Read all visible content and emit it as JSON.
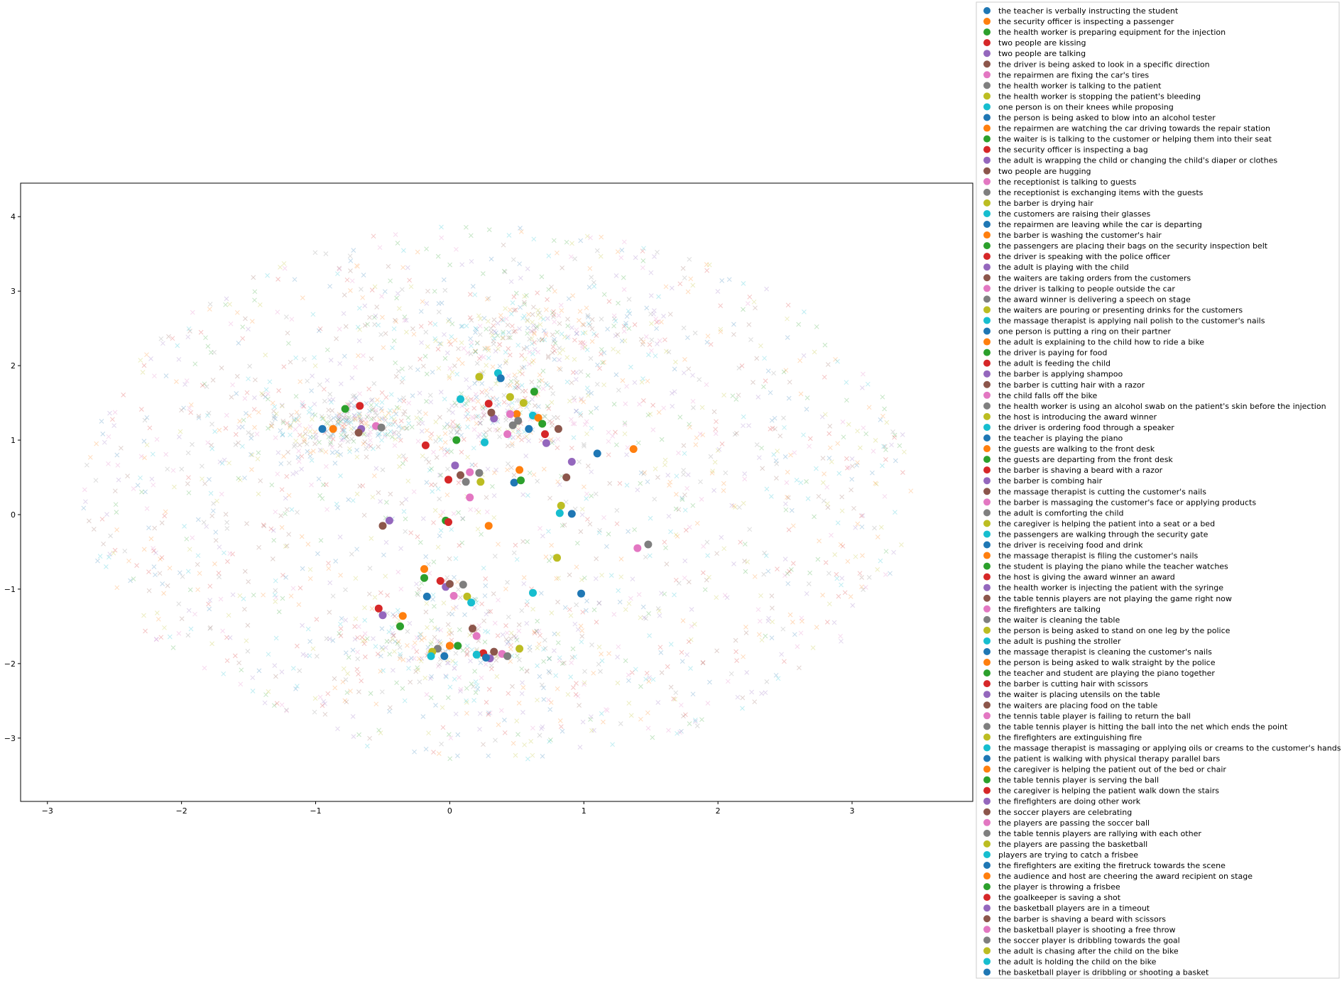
{
  "chart_data": {
    "type": "scatter",
    "title": "",
    "xlabel": "",
    "ylabel": "",
    "xlim": [
      -3.2,
      3.9
    ],
    "ylim": [
      -3.85,
      4.45
    ],
    "xticks": [
      -3,
      -2,
      -1,
      0,
      1,
      2,
      3
    ],
    "yticks": [
      -3,
      -2,
      -1,
      0,
      1,
      2,
      3,
      4
    ],
    "grid": false,
    "legend_position": "outside-right",
    "background_markers": "x",
    "palette": [
      "#1f77b4",
      "#ff7f0e",
      "#2ca02c",
      "#d62728",
      "#9467bd",
      "#8c564b",
      "#e377c2",
      "#7f7f7f",
      "#bcbd22",
      "#17becf"
    ],
    "series": [
      {
        "name": "the teacher is verbally instructing the student",
        "color": "#1f77b4"
      },
      {
        "name": "the security officer is inspecting a passenger",
        "color": "#ff7f0e"
      },
      {
        "name": "the health worker is preparing equipment for the injection",
        "color": "#2ca02c"
      },
      {
        "name": "two people are kissing",
        "color": "#d62728"
      },
      {
        "name": "two people are talking",
        "color": "#9467bd"
      },
      {
        "name": "the driver is being asked to look in a specific direction",
        "color": "#8c564b"
      },
      {
        "name": "the repairmen are fixing the car's tires",
        "color": "#e377c2"
      },
      {
        "name": "the health worker is talking to the patient",
        "color": "#7f7f7f"
      },
      {
        "name": "the health worker is stopping the patient's bleeding",
        "color": "#bcbd22"
      },
      {
        "name": "one person is on their knees while proposing",
        "color": "#17becf"
      },
      {
        "name": "the person is being asked to blow into an alcohol tester",
        "color": "#1f77b4"
      },
      {
        "name": "the repairmen are watching the car driving towards the repair station",
        "color": "#ff7f0e"
      },
      {
        "name": "the waiter is is talking to the customer or helping them into their seat",
        "color": "#2ca02c"
      },
      {
        "name": "the security officer is inspecting a bag",
        "color": "#d62728"
      },
      {
        "name": "the adult is wrapping the child or changing the child's diaper or clothes",
        "color": "#9467bd"
      },
      {
        "name": "two people are hugging",
        "color": "#8c564b"
      },
      {
        "name": "the receptionist is talking to guests",
        "color": "#e377c2"
      },
      {
        "name": "the receptionist is exchanging items with the guests",
        "color": "#7f7f7f"
      },
      {
        "name": "the barber is drying hair",
        "color": "#bcbd22"
      },
      {
        "name": "the customers are raising their glasses",
        "color": "#17becf"
      },
      {
        "name": "the repairmen are leaving while the car is departing",
        "color": "#1f77b4"
      },
      {
        "name": "the barber is washing the customer's hair",
        "color": "#ff7f0e"
      },
      {
        "name": "the passengers are placing their bags on the security inspection belt",
        "color": "#2ca02c"
      },
      {
        "name": "the driver is speaking with the police officer",
        "color": "#d62728"
      },
      {
        "name": "the adult is playing with the child",
        "color": "#9467bd"
      },
      {
        "name": "the waiters are taking orders from the customers",
        "color": "#8c564b"
      },
      {
        "name": "the driver is talking to people outside the car",
        "color": "#e377c2"
      },
      {
        "name": "the award winner is delivering a speech on stage",
        "color": "#7f7f7f"
      },
      {
        "name": "the waiters are pouring or presenting drinks for the customers",
        "color": "#bcbd22"
      },
      {
        "name": "the massage therapist is applying nail polish to the customer's nails",
        "color": "#17becf"
      },
      {
        "name": "one person is putting a ring on their partner",
        "color": "#1f77b4"
      },
      {
        "name": "the adult is explaining to the child how to ride a bike",
        "color": "#ff7f0e"
      },
      {
        "name": "the driver is paying for food",
        "color": "#2ca02c"
      },
      {
        "name": "the adult is feeding the child",
        "color": "#d62728"
      },
      {
        "name": "the barber is applying shampoo",
        "color": "#9467bd"
      },
      {
        "name": "the barber is cutting hair with a razor",
        "color": "#8c564b"
      },
      {
        "name": "the child falls off the bike",
        "color": "#e377c2"
      },
      {
        "name": "the health worker is using an alcohol swab on the patient's skin before the injection",
        "color": "#7f7f7f"
      },
      {
        "name": "the host is introducing the award winner",
        "color": "#bcbd22"
      },
      {
        "name": "the driver is ordering food through a speaker",
        "color": "#17becf"
      },
      {
        "name": "the teacher is playing the piano",
        "color": "#1f77b4"
      },
      {
        "name": "the guests are walking to the front desk",
        "color": "#ff7f0e"
      },
      {
        "name": "the guests are departing from the front desk",
        "color": "#2ca02c"
      },
      {
        "name": "the barber is shaving a beard with a razor",
        "color": "#d62728"
      },
      {
        "name": "the barber is combing hair",
        "color": "#9467bd"
      },
      {
        "name": "the massage therapist is cutting the customer's nails",
        "color": "#8c564b"
      },
      {
        "name": "the barber is massaging the customer's face or applying products",
        "color": "#e377c2"
      },
      {
        "name": "the adult is comforting the child",
        "color": "#7f7f7f"
      },
      {
        "name": "the caregiver is helping the patient into a seat or a bed",
        "color": "#bcbd22"
      },
      {
        "name": "the passengers are walking through the security gate",
        "color": "#17becf"
      },
      {
        "name": "the driver is receiving food and drink",
        "color": "#1f77b4"
      },
      {
        "name": "the massage therapist is filing the customer's nails",
        "color": "#ff7f0e"
      },
      {
        "name": "the student is playing the piano while the teacher watches",
        "color": "#2ca02c"
      },
      {
        "name": "the host is giving the award winner an award",
        "color": "#d62728"
      },
      {
        "name": "the health worker is injecting the patient with the syringe",
        "color": "#9467bd"
      },
      {
        "name": "the table tennis players are not playing the game right now",
        "color": "#8c564b"
      },
      {
        "name": "the firefighters are talking",
        "color": "#e377c2"
      },
      {
        "name": "the waiter is cleaning the table",
        "color": "#7f7f7f"
      },
      {
        "name": "the person is being asked to stand on one leg by the police",
        "color": "#bcbd22"
      },
      {
        "name": "the adult is pushing the stroller",
        "color": "#17becf"
      },
      {
        "name": "the massage therapist is cleaning the customer's nails",
        "color": "#1f77b4"
      },
      {
        "name": "the person is being asked to walk straight by the police",
        "color": "#ff7f0e"
      },
      {
        "name": "the teacher and student are playing the piano together",
        "color": "#2ca02c"
      },
      {
        "name": "the barber is cutting hair with scissors",
        "color": "#d62728"
      },
      {
        "name": "the waiter is placing utensils on the table",
        "color": "#9467bd"
      },
      {
        "name": "the waiters are placing food on the table",
        "color": "#8c564b"
      },
      {
        "name": "the tennis table player is failing to return the ball",
        "color": "#e377c2"
      },
      {
        "name": "the table tennis player is hitting the ball into the net which ends the point",
        "color": "#7f7f7f"
      },
      {
        "name": "the firefighters are extinguishing fire",
        "color": "#bcbd22"
      },
      {
        "name": "the massage therapist is massaging or applying oils or creams to the customer's hands or feet",
        "color": "#17becf"
      },
      {
        "name": "the patient is walking with physical therapy parallel bars",
        "color": "#1f77b4"
      },
      {
        "name": "the caregiver is helping the patient out of the bed or chair",
        "color": "#ff7f0e"
      },
      {
        "name": "the table tennis player is serving the ball",
        "color": "#2ca02c"
      },
      {
        "name": "the caregiver is helping the patient walk down the stairs",
        "color": "#d62728"
      },
      {
        "name": "the firefighters are doing other work",
        "color": "#9467bd"
      },
      {
        "name": "the soccer players are celebrating",
        "color": "#8c564b"
      },
      {
        "name": "the players are passing the soccer ball",
        "color": "#e377c2"
      },
      {
        "name": "the table tennis players are rallying with each other",
        "color": "#7f7f7f"
      },
      {
        "name": "the players are passing the basketball",
        "color": "#bcbd22"
      },
      {
        "name": "players are trying to catch a frisbee",
        "color": "#17becf"
      },
      {
        "name": "the firefighters are exiting the firetruck towards the scene",
        "color": "#1f77b4"
      },
      {
        "name": "the audience and host are cheering the award recipient on stage",
        "color": "#ff7f0e"
      },
      {
        "name": "the player is throwing a frisbee",
        "color": "#2ca02c"
      },
      {
        "name": "the goalkeeper is saving a shot",
        "color": "#d62728"
      },
      {
        "name": "the basketball players are in a timeout",
        "color": "#9467bd"
      },
      {
        "name": "the barber is shaving a beard with scissors",
        "color": "#8c564b"
      },
      {
        "name": "the basketball player is shooting a free throw",
        "color": "#e377c2"
      },
      {
        "name": "the soccer player is dribbling towards the goal",
        "color": "#7f7f7f"
      },
      {
        "name": "the adult is chasing after the child on the bike",
        "color": "#bcbd22"
      },
      {
        "name": "the adult is holding the child on the bike",
        "color": "#17becf"
      },
      {
        "name": "the basketball player is dribbling or shooting a basket",
        "color": "#1f77b4"
      }
    ],
    "centroids": [
      [
        -0.95,
        1.15
      ],
      [
        -0.87,
        1.15
      ],
      [
        -0.78,
        1.42
      ],
      [
        -0.67,
        1.46
      ],
      [
        -0.66,
        1.15
      ],
      [
        -0.68,
        1.1
      ],
      [
        -0.55,
        1.19
      ],
      [
        -0.51,
        1.17
      ],
      [
        0.22,
        1.85
      ],
      [
        0.36,
        1.9
      ],
      [
        0.38,
        1.83
      ],
      [
        0.5,
        1.35
      ],
      [
        0.63,
        1.65
      ],
      [
        0.29,
        1.49
      ],
      [
        0.33,
        1.29
      ],
      [
        0.31,
        1.37
      ],
      [
        0.45,
        1.35
      ],
      [
        0.47,
        1.2
      ],
      [
        0.55,
        1.5
      ],
      [
        0.62,
        1.33
      ],
      [
        0.59,
        1.15
      ],
      [
        0.66,
        1.3
      ],
      [
        0.69,
        1.22
      ],
      [
        0.71,
        1.08
      ],
      [
        0.72,
        0.96
      ],
      [
        0.81,
        1.15
      ],
      [
        0.43,
        1.08
      ],
      [
        0.51,
        1.26
      ],
      [
        0.45,
        1.58
      ],
      [
        0.08,
        1.55
      ],
      [
        1.1,
        0.82
      ],
      [
        1.37,
        0.88
      ],
      [
        0.05,
        1.0
      ],
      [
        -0.18,
        0.93
      ],
      [
        0.04,
        0.66
      ],
      [
        0.08,
        0.53
      ],
      [
        0.15,
        0.57
      ],
      [
        0.22,
        0.56
      ],
      [
        0.23,
        0.44
      ],
      [
        0.26,
        0.97
      ],
      [
        0.48,
        0.43
      ],
      [
        0.52,
        0.6
      ],
      [
        0.53,
        0.46
      ],
      [
        -0.01,
        0.47
      ],
      [
        0.91,
        0.71
      ],
      [
        0.87,
        0.5
      ],
      [
        0.15,
        0.23
      ],
      [
        0.12,
        0.44
      ],
      [
        0.83,
        0.12
      ],
      [
        0.82,
        0.02
      ],
      [
        0.91,
        0.01
      ],
      [
        0.29,
        -0.15
      ],
      [
        -0.03,
        -0.08
      ],
      [
        -0.01,
        -0.1
      ],
      [
        -0.45,
        -0.08
      ],
      [
        -0.5,
        -0.15
      ],
      [
        1.4,
        -0.45
      ],
      [
        1.48,
        -0.4
      ],
      [
        0.8,
        -0.58
      ],
      [
        0.62,
        -1.05
      ],
      [
        0.98,
        -1.06
      ],
      [
        -0.19,
        -0.73
      ],
      [
        -0.19,
        -0.85
      ],
      [
        -0.07,
        -0.89
      ],
      [
        -0.03,
        -0.97
      ],
      [
        0.0,
        -0.93
      ],
      [
        0.03,
        -1.09
      ],
      [
        0.1,
        -0.94
      ],
      [
        0.13,
        -1.1
      ],
      [
        0.16,
        -1.18
      ],
      [
        -0.17,
        -1.1
      ],
      [
        -0.35,
        -1.36
      ],
      [
        -0.37,
        -1.5
      ],
      [
        -0.53,
        -1.26
      ],
      [
        -0.5,
        -1.35
      ],
      [
        0.17,
        -1.53
      ],
      [
        0.2,
        -1.63
      ],
      [
        -0.09,
        -1.8
      ],
      [
        -0.13,
        -1.84
      ],
      [
        -0.14,
        -1.9
      ],
      [
        -0.04,
        -1.9
      ],
      [
        0.0,
        -1.76
      ],
      [
        0.06,
        -1.76
      ],
      [
        0.25,
        -1.86
      ],
      [
        0.3,
        -1.93
      ],
      [
        0.33,
        -1.84
      ],
      [
        0.39,
        -1.87
      ],
      [
        0.43,
        -1.9
      ],
      [
        0.52,
        -1.8
      ],
      [
        0.2,
        -1.88
      ],
      [
        0.27,
        -1.92
      ]
    ]
  }
}
